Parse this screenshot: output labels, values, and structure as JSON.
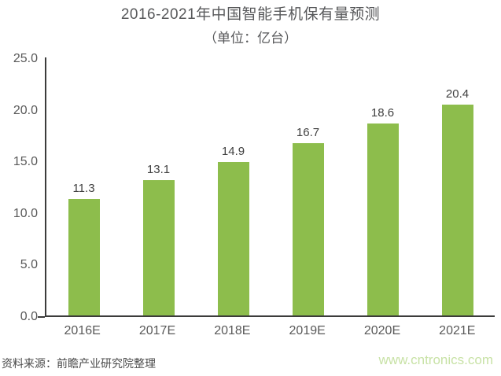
{
  "chart": {
    "title": "2016-2021年中国智能手机保有量预测",
    "subtitle": "（单位：亿台）"
  },
  "chart_data": {
    "type": "bar",
    "title": "2016-2021年中国智能手机保有量预测",
    "subtitle": "（单位：亿台）",
    "categories": [
      "2016E",
      "2017E",
      "2018E",
      "2019E",
      "2020E",
      "2021E"
    ],
    "values": [
      11.3,
      13.1,
      14.9,
      16.7,
      18.6,
      20.4
    ],
    "value_labels": [
      "11.3",
      "13.1",
      "14.9",
      "16.7",
      "18.6",
      "20.4"
    ],
    "xlabel": "",
    "ylabel": "",
    "ylim": [
      0,
      25
    ],
    "yticks": [
      0,
      5,
      10,
      15,
      20,
      25
    ],
    "ytick_labels": [
      "0.0",
      "5.0",
      "10.0",
      "15.0",
      "20.0",
      "25.0"
    ],
    "grid": false,
    "legend": "none",
    "bar_color": "#8dbd4c"
  },
  "footer": {
    "source": "资料来源：前瞻产业研究院整理",
    "website": "www.cntronics.com"
  },
  "colors": {
    "bar": "#8dbd4c",
    "title_text": "#58595b",
    "axis_line": "#3c3c3b",
    "tick_label": "#595959",
    "data_label": "#404040",
    "source_text": "#4a4a4a",
    "website_text": "#c8e2a6"
  }
}
